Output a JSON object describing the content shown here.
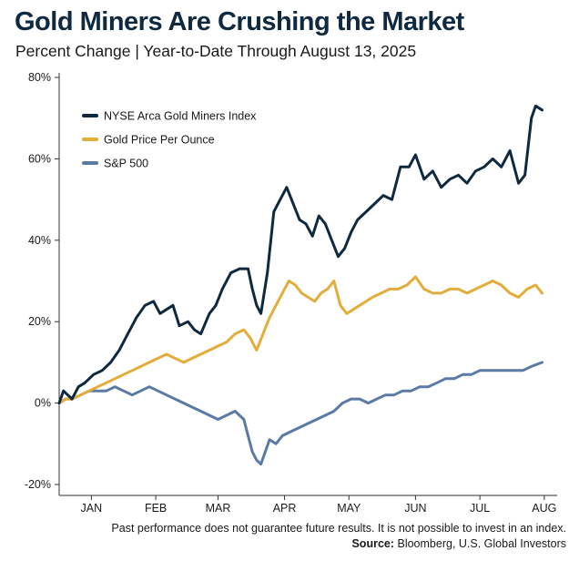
{
  "header": {
    "title": "Gold Miners Are Crushing the Market",
    "subtitle": "Percent Change | Year-to-Date Through August 13, 2025"
  },
  "footer": {
    "disclaimer": "Past performance does not guarantee future results. It is not possible to invest in an index.",
    "source_label": "Source:",
    "source_text": " Bloomberg, U.S. Global Investors"
  },
  "chart_data": {
    "type": "line",
    "title": "Gold Miners Are Crushing the Market",
    "subtitle": "Percent Change | Year-to-Date Through August 13, 2025",
    "xlabel": "",
    "ylabel": "",
    "ylim": [
      -20,
      80
    ],
    "yticks": [
      -20,
      0,
      20,
      40,
      60,
      80
    ],
    "ytick_labels": [
      "-20%",
      "0%",
      "20%",
      "40%",
      "60%",
      "80%"
    ],
    "xlim": [
      0,
      225
    ],
    "xticks": [
      15,
      45,
      74,
      105,
      135,
      166,
      196,
      226
    ],
    "xtick_labels": [
      "JAN",
      "FEB",
      "MAR",
      "APR",
      "MAY",
      "JUN",
      "JUL",
      "AUG"
    ],
    "grid": false,
    "legend_position": "top-left",
    "series": [
      {
        "name": "NYSE Arca Gold Miners Index",
        "color": "#0f2940",
        "x": [
          0,
          2,
          4,
          6,
          9,
          12,
          16,
          20,
          24,
          28,
          32,
          36,
          40,
          44,
          47,
          50,
          53,
          56,
          60,
          63,
          66,
          70,
          73,
          76,
          80,
          84,
          88,
          90,
          92,
          94,
          97,
          100,
          103,
          106,
          109,
          112,
          115,
          118,
          121,
          124,
          127,
          130,
          133,
          136,
          139,
          143,
          147,
          151,
          155,
          159,
          163,
          166,
          170,
          174,
          178,
          182,
          186,
          190,
          194,
          198,
          202,
          206,
          210,
          214,
          217,
          220,
          222,
          225
        ],
        "y": [
          0,
          3,
          2,
          1,
          4,
          5,
          7,
          8,
          10,
          13,
          17,
          21,
          24,
          25,
          22,
          23,
          24,
          19,
          20,
          18,
          17,
          22,
          24,
          28,
          32,
          33,
          33,
          28,
          24,
          22,
          32,
          47,
          50,
          53,
          49,
          45,
          44,
          41,
          46,
          44,
          40,
          36,
          38,
          42,
          45,
          47,
          49,
          51,
          50,
          58,
          58,
          61,
          55,
          57,
          53,
          55,
          56,
          54,
          57,
          58,
          60,
          58,
          62,
          54,
          56,
          70,
          73,
          72
        ]
      },
      {
        "name": "Gold Price Per Ounce",
        "color": "#e2ad3b",
        "x": [
          0,
          3,
          6,
          10,
          14,
          18,
          22,
          26,
          30,
          34,
          38,
          42,
          46,
          50,
          54,
          58,
          62,
          66,
          70,
          74,
          78,
          82,
          86,
          89,
          92,
          95,
          98,
          101,
          104,
          107,
          110,
          113,
          116,
          119,
          122,
          125,
          128,
          131,
          134,
          137,
          140,
          143,
          146,
          150,
          154,
          158,
          162,
          166,
          170,
          174,
          178,
          182,
          186,
          190,
          194,
          198,
          202,
          206,
          210,
          214,
          218,
          222,
          225
        ],
        "y": [
          0,
          1,
          1,
          2,
          3,
          4,
          5,
          6,
          7,
          8,
          9,
          10,
          11,
          12,
          11,
          10,
          11,
          12,
          13,
          14,
          15,
          17,
          18,
          16,
          13,
          17,
          21,
          24,
          27,
          30,
          29,
          27,
          26,
          25,
          27,
          28,
          30,
          24,
          22,
          23,
          24,
          25,
          26,
          27,
          28,
          28,
          29,
          31,
          28,
          27,
          27,
          28,
          28,
          27,
          28,
          29,
          30,
          29,
          27,
          26,
          28,
          29,
          27
        ]
      },
      {
        "name": "S&P 500",
        "color": "#5b7aa6",
        "x": [
          0,
          3,
          6,
          10,
          14,
          18,
          22,
          26,
          30,
          34,
          38,
          42,
          46,
          50,
          54,
          58,
          62,
          66,
          70,
          74,
          78,
          82,
          86,
          88,
          90,
          92,
          94,
          96,
          98,
          101,
          104,
          108,
          112,
          116,
          120,
          124,
          128,
          132,
          136,
          140,
          144,
          148,
          152,
          156,
          160,
          164,
          168,
          172,
          176,
          180,
          184,
          188,
          192,
          196,
          200,
          204,
          208,
          212,
          216,
          220,
          225
        ],
        "y": [
          0,
          1,
          1,
          2,
          3,
          3,
          3,
          4,
          3,
          2,
          3,
          4,
          3,
          2,
          1,
          0,
          -1,
          -2,
          -3,
          -4,
          -3,
          -2,
          -4,
          -8,
          -12,
          -14,
          -15,
          -12,
          -9,
          -10,
          -8,
          -7,
          -6,
          -5,
          -4,
          -3,
          -2,
          0,
          1,
          1,
          0,
          1,
          2,
          2,
          3,
          3,
          4,
          4,
          5,
          6,
          6,
          7,
          7,
          8,
          8,
          8,
          8,
          8,
          8,
          9,
          10
        ]
      }
    ]
  }
}
